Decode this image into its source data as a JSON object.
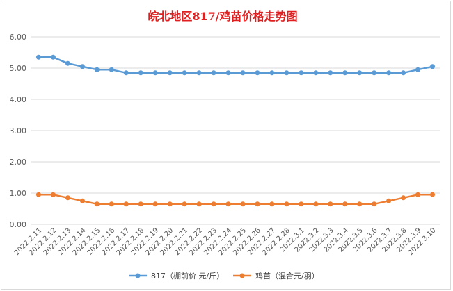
{
  "chart_data": {
    "type": "line",
    "title": "皖北地区817/鸡苗价格走势图",
    "xlabel": "",
    "ylabel": "",
    "ylim": [
      0,
      6
    ],
    "yticks": [
      "0.00",
      "1.00",
      "2.00",
      "3.00",
      "4.00",
      "5.00",
      "6.00"
    ],
    "grid": "horizontal",
    "legend_position": "bottom",
    "categories": [
      "2022.2.11",
      "2022.2.12",
      "2022.2.13",
      "2022.2.14",
      "2022.2.15",
      "2022.2.16",
      "2022.2.17",
      "2022.2.18",
      "2022.2.19",
      "2022.2.20",
      "2022.2.21",
      "2022.2.22",
      "2022.2.23",
      "2022.2.24",
      "2022.2.25",
      "2022.2.26",
      "2022.2.27",
      "2022.2.28",
      "2022.3.1",
      "2022.3.2",
      "2022.3.3",
      "2022.3.4",
      "2022.3.5",
      "2022.3.6",
      "2022.3.7",
      "2022.3.8",
      "2022.3.9",
      "2022.3.10"
    ],
    "series": [
      {
        "name": "817（棚前价 元/斤）",
        "color": "#5b9bd5",
        "values": [
          5.35,
          5.35,
          5.15,
          5.05,
          4.95,
          4.95,
          4.85,
          4.85,
          4.85,
          4.85,
          4.85,
          4.85,
          4.85,
          4.85,
          4.85,
          4.85,
          4.85,
          4.85,
          4.85,
          4.85,
          4.85,
          4.85,
          4.85,
          4.85,
          4.85,
          4.85,
          4.95,
          5.05
        ]
      },
      {
        "name": "鸡苗（混合元/羽）",
        "color": "#ed7d31",
        "values": [
          0.95,
          0.95,
          0.85,
          0.75,
          0.65,
          0.65,
          0.65,
          0.65,
          0.65,
          0.65,
          0.65,
          0.65,
          0.65,
          0.65,
          0.65,
          0.65,
          0.65,
          0.65,
          0.65,
          0.65,
          0.65,
          0.65,
          0.65,
          0.65,
          0.75,
          0.85,
          0.95,
          0.95
        ]
      }
    ]
  }
}
